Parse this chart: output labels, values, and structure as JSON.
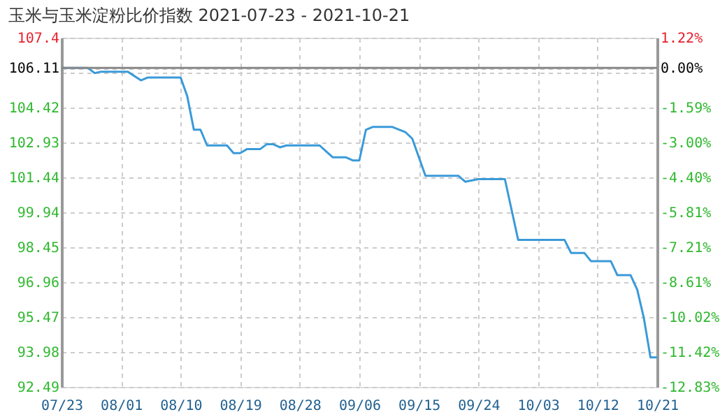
{
  "chart_data": {
    "type": "line",
    "title": "玉米与玉米淀粉比价指数 2021-07-23 - 2021-10-21",
    "x": [
      "2021-07-23",
      "2021-07-27",
      "2021-07-28",
      "2021-07-29",
      "2021-08-02",
      "2021-08-04",
      "2021-08-05",
      "2021-08-10",
      "2021-08-11",
      "2021-08-12",
      "2021-08-13",
      "2021-08-14",
      "2021-08-17",
      "2021-08-18",
      "2021-08-19",
      "2021-08-20",
      "2021-08-22",
      "2021-08-23",
      "2021-08-24",
      "2021-08-25",
      "2021-08-26",
      "2021-08-31",
      "2021-09-01",
      "2021-09-02",
      "2021-09-04",
      "2021-09-05",
      "2021-09-06",
      "2021-09-07",
      "2021-09-08",
      "2021-09-11",
      "2021-09-13",
      "2021-09-14",
      "2021-09-16",
      "2021-09-21",
      "2021-09-22",
      "2021-09-24",
      "2021-09-28",
      "2021-09-30",
      "2021-10-07",
      "2021-10-08",
      "2021-10-10",
      "2021-10-11",
      "2021-10-14",
      "2021-10-15",
      "2021-10-17",
      "2021-10-18",
      "2021-10-19",
      "2021-10-20",
      "2021-10-21"
    ],
    "series": [
      {
        "color": "#3a9ad9",
        "values": [
          106.11,
          106.11,
          105.89,
          105.95,
          105.95,
          105.58,
          105.7,
          105.7,
          104.9,
          103.47,
          103.47,
          102.8,
          102.8,
          102.47,
          102.47,
          102.64,
          102.64,
          102.85,
          102.85,
          102.72,
          102.8,
          102.8,
          102.54,
          102.29,
          102.29,
          102.16,
          102.16,
          103.47,
          103.59,
          103.59,
          103.36,
          103.09,
          101.5,
          101.5,
          101.25,
          101.36,
          101.36,
          98.77,
          98.77,
          98.21,
          98.21,
          97.86,
          97.86,
          97.26,
          97.26,
          96.64,
          95.43,
          93.75,
          93.75
        ]
      }
    ],
    "xlim": [
      "2021-07-23",
      "2021-10-21"
    ],
    "xticks": [
      {
        "value": "2021-07-23",
        "label": "07/23"
      },
      {
        "value": "2021-08-01",
        "label": "08/01"
      },
      {
        "value": "2021-08-10",
        "label": "08/10"
      },
      {
        "value": "2021-08-19",
        "label": "08/19"
      },
      {
        "value": "2021-08-28",
        "label": "08/28"
      },
      {
        "value": "2021-09-06",
        "label": "09/06"
      },
      {
        "value": "2021-09-15",
        "label": "09/15"
      },
      {
        "value": "2021-09-24",
        "label": "09/24"
      },
      {
        "value": "2021-10-03",
        "label": "10/03"
      },
      {
        "value": "2021-10-12",
        "label": "10/12"
      },
      {
        "value": "2021-10-21",
        "label": "10/21"
      }
    ],
    "ylim": [
      92.49,
      107.4
    ],
    "yticks": [
      92.49,
      93.98,
      95.47,
      96.96,
      98.45,
      99.94,
      101.44,
      102.93,
      104.42,
      {
        "value": 105.91,
        "label": null
      },
      106.11,
      107.4
    ],
    "y2lim": [
      -12.83,
      1.22
    ],
    "y2ticks": [
      {
        "value": -12.83,
        "label": "-12.83%"
      },
      {
        "value": -11.42,
        "label": "-11.42%"
      },
      {
        "value": -10.02,
        "label": "-10.02%"
      },
      {
        "value": -8.61,
        "label": "-8.61%"
      },
      {
        "value": -7.21,
        "label": "-7.21%"
      },
      {
        "value": -5.81,
        "label": "-5.81%"
      },
      {
        "value": -4.4,
        "label": "-4.40%"
      },
      {
        "value": -3.0,
        "label": "-3.00%"
      },
      {
        "value": -1.59,
        "label": "-1.59%"
      },
      {
        "value": 0,
        "label": "0.00%"
      },
      {
        "value": 1.22,
        "label": "1.22%"
      }
    ],
    "ref_lines": [
      {
        "axis": "y",
        "value": 106.11,
        "color": "#888888"
      }
    ],
    "grid": true,
    "marker": "none",
    "line_style": "solid"
  }
}
